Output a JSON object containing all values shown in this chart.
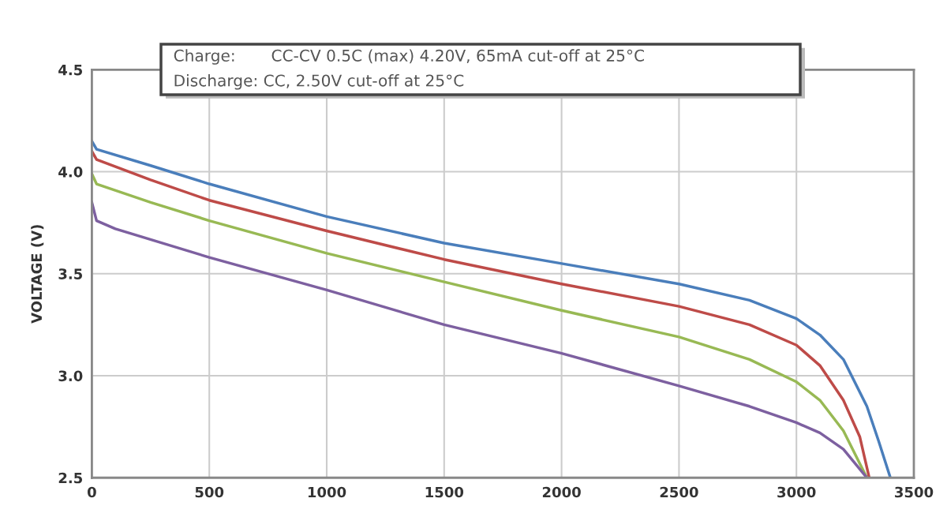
{
  "chart_data": {
    "type": "line",
    "ylabel": "VOLTAGE (V)",
    "annotations": [
      "Charge:       CC-CV 0.5C (max) 4.20V, 65mA cut-off at 25°C",
      "Discharge: CC, 2.50V cut-off at 25°C"
    ],
    "xlim": [
      0,
      3500
    ],
    "xticks": [
      0,
      500,
      1000,
      1500,
      2000,
      2500,
      3000,
      3500
    ],
    "ylim": [
      2.5,
      4.5
    ],
    "yticks": [
      {
        "value": 2.5,
        "label": "2.5"
      },
      {
        "value": 3.0,
        "label": "3.0"
      },
      {
        "value": 3.5,
        "label": "3.5"
      },
      {
        "value": 4.0,
        "label": "4.0"
      },
      {
        "value": 4.5,
        "label": "4.5"
      }
    ],
    "grid": true,
    "line_style": "solid",
    "marker": "none",
    "series": [
      {
        "color": "#4a7ebb",
        "x": [
          0,
          20,
          250,
          500,
          1000,
          1500,
          2000,
          2500,
          2800,
          3000,
          3100,
          3200,
          3300,
          3350,
          3400
        ],
        "values": [
          4.15,
          4.11,
          4.03,
          3.94,
          3.78,
          3.65,
          3.55,
          3.45,
          3.37,
          3.28,
          3.2,
          3.08,
          2.85,
          2.68,
          2.5
        ]
      },
      {
        "color": "#be4b48",
        "x": [
          0,
          20,
          250,
          500,
          1000,
          1500,
          2000,
          2500,
          2800,
          3000,
          3100,
          3200,
          3270,
          3310
        ],
        "values": [
          4.1,
          4.06,
          3.96,
          3.86,
          3.71,
          3.57,
          3.45,
          3.34,
          3.25,
          3.15,
          3.05,
          2.88,
          2.7,
          2.5
        ]
      },
      {
        "color": "#98b954",
        "x": [
          0,
          20,
          250,
          500,
          1000,
          1500,
          2000,
          2500,
          2800,
          3000,
          3100,
          3200,
          3300
        ],
        "values": [
          3.99,
          3.94,
          3.85,
          3.76,
          3.6,
          3.46,
          3.32,
          3.19,
          3.08,
          2.97,
          2.88,
          2.73,
          2.5
        ]
      },
      {
        "color": "#7d60a0",
        "x": [
          0,
          20,
          100,
          500,
          1000,
          1500,
          2000,
          2500,
          2800,
          3000,
          3100,
          3200,
          3300
        ],
        "values": [
          3.85,
          3.76,
          3.72,
          3.58,
          3.42,
          3.25,
          3.11,
          2.95,
          2.85,
          2.77,
          2.72,
          2.64,
          2.5
        ]
      }
    ]
  }
}
